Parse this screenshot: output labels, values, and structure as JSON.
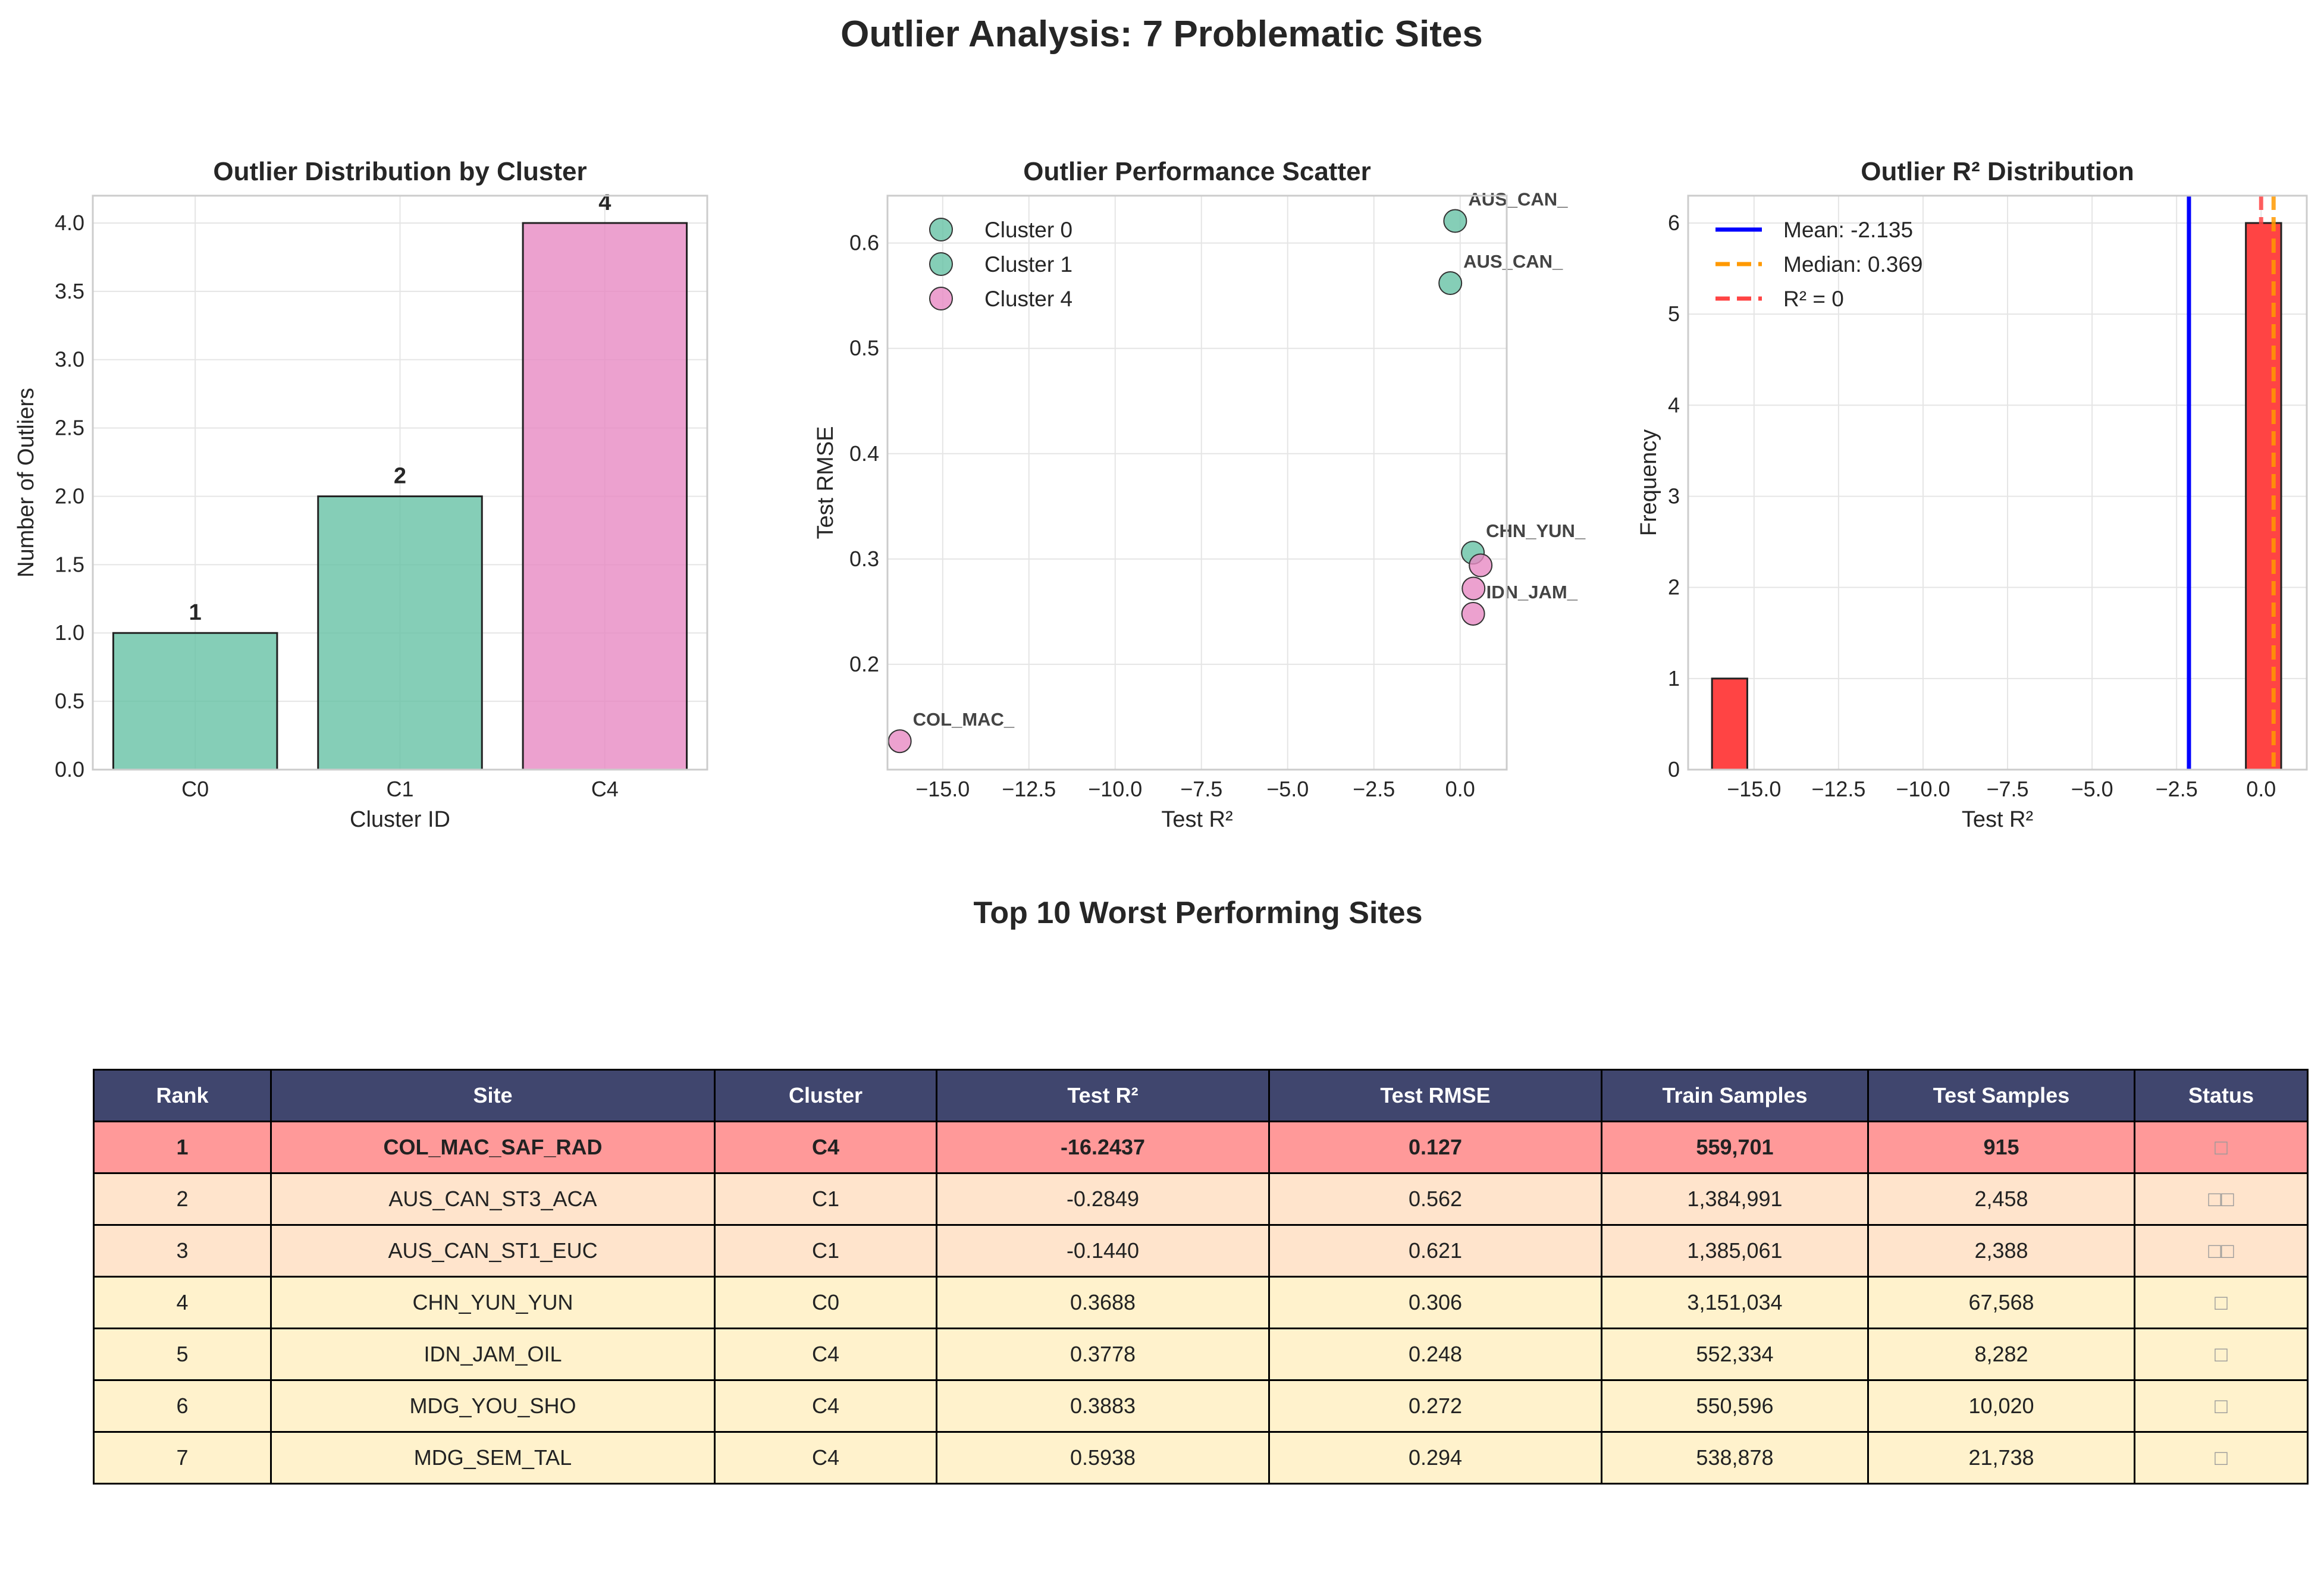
{
  "page": {
    "title": "Outlier Analysis: 7 Problematic Sites",
    "table_title": "Top 10 Worst Performing Sites"
  },
  "colors": {
    "cluster_green": "#66c2a5",
    "cluster_pink": "#e78ac3",
    "hist_red": "#ff4444",
    "mean_line": "#0000ff",
    "median_line": "#ff9900",
    "zero_line": "#ff4444",
    "header_bg": "#40466e",
    "row_worst": "#ff9999",
    "row_bad": "#ffe4cc",
    "row_mild": "#fff2cc"
  },
  "chart_data": [
    {
      "type": "bar",
      "title": "Outlier Distribution by Cluster",
      "xlabel": "Cluster ID",
      "ylabel": "Number of Outliers",
      "categories": [
        "C0",
        "C1",
        "C4"
      ],
      "values": [
        1,
        2,
        4
      ],
      "value_labels": [
        "1",
        "2",
        "4"
      ],
      "bar_colors": [
        "#66c2a5",
        "#66c2a5",
        "#e78ac3"
      ],
      "ylim": [
        0,
        4.2
      ],
      "yticks": [
        0,
        0.5,
        1,
        1.5,
        2,
        2.5,
        3,
        3.5,
        4
      ],
      "ytick_labels": [
        "0.0",
        "0.5",
        "1.0",
        "1.5",
        "2.0",
        "2.5",
        "3.0",
        "3.5",
        "4.0"
      ],
      "grid": true
    },
    {
      "type": "scatter",
      "title": "Outlier Performance Scatter",
      "xlabel": "Test R²",
      "ylabel": "Test RMSE",
      "xlim": [
        -16.6,
        1.35
      ],
      "ylim": [
        0.1,
        0.645
      ],
      "xticks": [
        -15,
        -12.5,
        -10,
        -7.5,
        -5,
        -2.5,
        0
      ],
      "xtick_labels": [
        "−15.0",
        "−12.5",
        "−10.0",
        "−7.5",
        "−5.0",
        "−2.5",
        "0.0"
      ],
      "yticks": [
        0.2,
        0.3,
        0.4,
        0.5,
        0.6
      ],
      "ytick_labels": [
        "0.2",
        "0.3",
        "0.4",
        "0.5",
        "0.6"
      ],
      "legend": "top-left",
      "grid": true,
      "series": [
        {
          "name": "Cluster 0",
          "color": "#66c2a5",
          "points": [
            {
              "x": 0.3688,
              "y": 0.306
            }
          ]
        },
        {
          "name": "Cluster 1",
          "color": "#66c2a5",
          "points": [
            {
              "x": -0.2849,
              "y": 0.562
            },
            {
              "x": -0.144,
              "y": 0.621
            }
          ]
        },
        {
          "name": "Cluster 4",
          "color": "#e78ac3",
          "points": [
            {
              "x": -16.2437,
              "y": 0.127
            },
            {
              "x": 0.3778,
              "y": 0.248
            },
            {
              "x": 0.3883,
              "y": 0.272
            },
            {
              "x": 0.5938,
              "y": 0.294
            }
          ]
        }
      ],
      "annotations": [
        {
          "text": "AUS_CAN_",
          "x": -0.144,
          "y": 0.621
        },
        {
          "text": "AUS_CAN_",
          "x": -0.2849,
          "y": 0.562
        },
        {
          "text": "CHN_YUN_",
          "x": 0.3688,
          "y": 0.306
        },
        {
          "text": "IDN_JAM_",
          "x": 0.3778,
          "y": 0.248
        },
        {
          "text": "COL_MAC_",
          "x": -16.2437,
          "y": 0.127
        }
      ]
    },
    {
      "type": "bar",
      "title": "Outlier R² Distribution",
      "xlabel": "Test R²",
      "ylabel": "Frequency",
      "xlim": [
        -16.95,
        1.35
      ],
      "ylim": [
        0,
        6.3
      ],
      "xticks": [
        -15,
        -12.5,
        -10,
        -7.5,
        -5,
        -2.5,
        0
      ],
      "xtick_labels": [
        "−15.0",
        "−12.5",
        "−10.0",
        "−7.5",
        "−5.0",
        "−2.5",
        "0.0"
      ],
      "yticks": [
        0,
        1,
        2,
        3,
        4,
        5,
        6
      ],
      "ytick_labels": [
        "0",
        "1",
        "2",
        "3",
        "4",
        "5",
        "6"
      ],
      "bins": [
        {
          "x0": -16.2437,
          "x1": -15.2,
          "count": 1
        },
        {
          "x0": -0.4508,
          "x1": 0.5938,
          "count": 6
        }
      ],
      "vlines": [
        {
          "label": "Mean: -2.135",
          "x": -2.135,
          "color": "#0000ff",
          "style": "solid"
        },
        {
          "label": "Median: 0.369",
          "x": 0.369,
          "color": "#ff9900",
          "style": "dashed"
        },
        {
          "label": "R² = 0",
          "x": 0,
          "color": "#ff4444",
          "style": "dashed"
        }
      ],
      "legend": "top-left",
      "grid": true
    }
  ],
  "table": {
    "columns": [
      "Rank",
      "Site",
      "Cluster",
      "Test R²",
      "Test RMSE",
      "Train Samples",
      "Test Samples",
      "Status"
    ],
    "rows": [
      {
        "rank": "1",
        "site": "COL_MAC_SAF_RAD",
        "cluster": "C4",
        "r2": "-16.2437",
        "rmse": "0.127",
        "train": "559,701",
        "test": "915",
        "status": "□",
        "color": "#ff9999"
      },
      {
        "rank": "2",
        "site": "AUS_CAN_ST3_ACA",
        "cluster": "C1",
        "r2": "-0.2849",
        "rmse": "0.562",
        "train": "1,384,991",
        "test": "2,458",
        "status": "□□",
        "color": "#ffe4cc"
      },
      {
        "rank": "3",
        "site": "AUS_CAN_ST1_EUC",
        "cluster": "C1",
        "r2": "-0.1440",
        "rmse": "0.621",
        "train": "1,385,061",
        "test": "2,388",
        "status": "□□",
        "color": "#ffe4cc"
      },
      {
        "rank": "4",
        "site": "CHN_YUN_YUN",
        "cluster": "C0",
        "r2": "0.3688",
        "rmse": "0.306",
        "train": "3,151,034",
        "test": "67,568",
        "status": "□",
        "color": "#fff2cc"
      },
      {
        "rank": "5",
        "site": "IDN_JAM_OIL",
        "cluster": "C4",
        "r2": "0.3778",
        "rmse": "0.248",
        "train": "552,334",
        "test": "8,282",
        "status": "□",
        "color": "#fff2cc"
      },
      {
        "rank": "6",
        "site": "MDG_YOU_SHO",
        "cluster": "C4",
        "r2": "0.3883",
        "rmse": "0.272",
        "train": "550,596",
        "test": "10,020",
        "status": "□",
        "color": "#fff2cc"
      },
      {
        "rank": "7",
        "site": "MDG_SEM_TAL",
        "cluster": "C4",
        "r2": "0.5938",
        "rmse": "0.294",
        "train": "538,878",
        "test": "21,738",
        "status": "□",
        "color": "#fff2cc"
      }
    ]
  }
}
